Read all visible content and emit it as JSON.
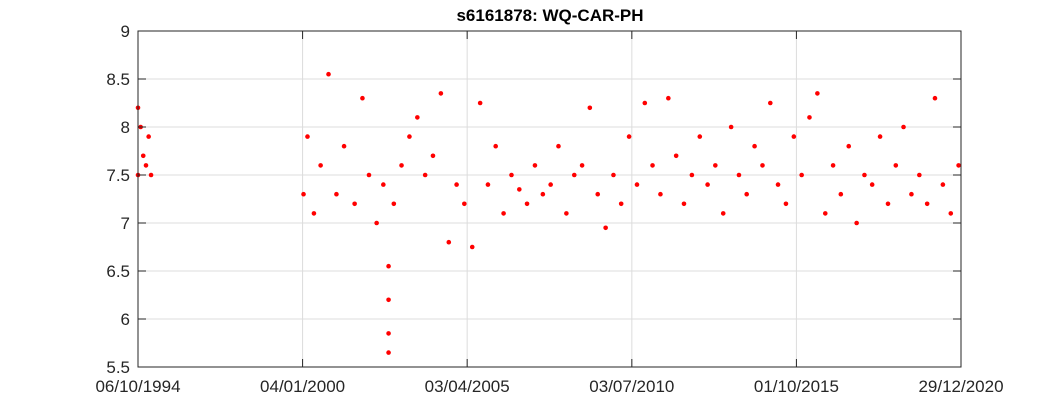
{
  "chart_data": {
    "type": "scatter",
    "title": "s6161878: WQ-CAR-PH",
    "xlabel": "",
    "ylabel": "",
    "xlim": [
      "06/10/1994",
      "29/12/2020"
    ],
    "ylim": [
      5.5,
      9
    ],
    "x_ticks": [
      "06/10/1994",
      "04/01/2000",
      "03/04/2005",
      "03/07/2010",
      "01/10/2015",
      "29/12/2020"
    ],
    "y_ticks": [
      "5.5",
      "6",
      "6.5",
      "7",
      "7.5",
      "8",
      "8.5",
      "9"
    ],
    "grid": true,
    "marker_color": "#ff0000",
    "series": [
      {
        "x": [
          "06/10/1994",
          "06/10/1994",
          "06/11/1994",
          "06/12/1994",
          "07/01/1995",
          "07/02/1995",
          "07/03/1995",
          "15/01/2000",
          "01/03/2000",
          "15/05/2000",
          "01/08/2000",
          "01/11/2000",
          "01/02/2001",
          "01/05/2001",
          "01/09/2001",
          "01/12/2001",
          "15/02/2002",
          "15/05/2002",
          "01/08/2002",
          "01/10/2002",
          "01/10/2002",
          "01/10/2002",
          "01/10/2002",
          "01/12/2002",
          "01/03/2003",
          "01/06/2003",
          "01/09/2003",
          "01/12/2003",
          "01/03/2004",
          "01/06/2004",
          "01/09/2004",
          "01/12/2004",
          "01/03/2005",
          "01/06/2005",
          "01/09/2005",
          "01/12/2005",
          "01/03/2006",
          "01/06/2006",
          "01/09/2006",
          "01/12/2006",
          "01/03/2007",
          "01/06/2007",
          "01/09/2007",
          "01/12/2007",
          "01/03/2008",
          "01/06/2008",
          "01/09/2008",
          "01/12/2008",
          "01/03/2009",
          "01/06/2009",
          "01/09/2009",
          "01/12/2009",
          "01/03/2010",
          "01/06/2010",
          "01/09/2010",
          "01/12/2010",
          "01/03/2011",
          "01/06/2011",
          "01/09/2011",
          "01/12/2011",
          "01/03/2012",
          "01/06/2012",
          "01/09/2012",
          "01/12/2012",
          "01/03/2013",
          "01/06/2013",
          "01/09/2013",
          "01/12/2013",
          "01/03/2014",
          "01/06/2014",
          "01/09/2014",
          "01/12/2014",
          "01/03/2015",
          "01/06/2015",
          "01/09/2015",
          "01/12/2015",
          "01/03/2016",
          "01/06/2016",
          "01/09/2016",
          "01/12/2016",
          "01/03/2017",
          "01/06/2017",
          "01/09/2017",
          "01/12/2017",
          "01/03/2018",
          "01/06/2018",
          "01/09/2018",
          "01/12/2018",
          "01/03/2019",
          "01/06/2019",
          "01/09/2019",
          "01/12/2019",
          "01/03/2020",
          "01/06/2020",
          "01/09/2020",
          "01/12/2020"
        ],
        "y": [
          7.5,
          8.2,
          8.0,
          7.7,
          7.6,
          7.9,
          7.5,
          7.3,
          7.9,
          7.1,
          7.6,
          8.55,
          7.3,
          7.8,
          7.2,
          8.3,
          7.5,
          7.0,
          7.4,
          6.55,
          6.2,
          5.85,
          5.65,
          7.2,
          7.6,
          7.9,
          8.1,
          7.5,
          7.7,
          8.35,
          6.8,
          7.4,
          7.2,
          6.75,
          8.25,
          7.4,
          7.8,
          7.1,
          7.5,
          7.35,
          7.2,
          7.6,
          7.3,
          7.4,
          7.8,
          7.1,
          7.5,
          7.6,
          8.2,
          7.3,
          6.95,
          7.5,
          7.2,
          7.9,
          7.4,
          8.25,
          7.6,
          7.3,
          8.3,
          7.7,
          7.2,
          7.5,
          7.9,
          7.4,
          7.6,
          7.1,
          8.0,
          7.5,
          7.3,
          7.8,
          7.6,
          8.25,
          7.4,
          7.2,
          7.9,
          7.5,
          8.1,
          8.35,
          7.1,
          7.6,
          7.3,
          7.8,
          7.0,
          7.5,
          7.4,
          7.9,
          7.2,
          7.6,
          8.0,
          7.3,
          7.5,
          7.2,
          8.3,
          7.4,
          7.1,
          7.6
        ]
      }
    ]
  }
}
